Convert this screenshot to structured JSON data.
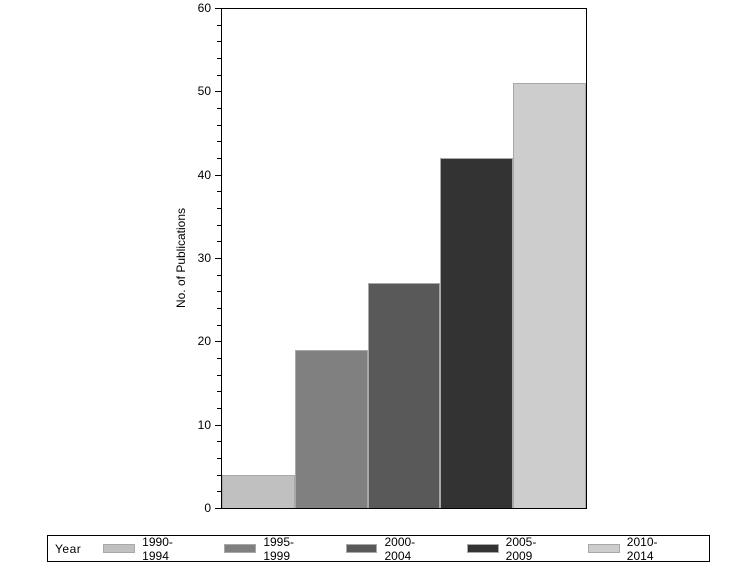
{
  "chart_data": {
    "type": "bar",
    "title": "",
    "xlabel": "",
    "ylabel": "No. of Publications",
    "ylim": [
      0,
      60
    ],
    "yticks": [
      0,
      10,
      20,
      30,
      40,
      50,
      60
    ],
    "grid": false,
    "legend_position": "bottom",
    "legend_title": "Year",
    "categories": [
      "1990-1994",
      "1995-1999",
      "2000-2004",
      "2005-2009",
      "2010-2014"
    ],
    "values": [
      4,
      19,
      27,
      42,
      51
    ],
    "colors": [
      "#c0c0c0",
      "#808080",
      "#595959",
      "#333333",
      "#cdcdcd"
    ]
  },
  "axis": {
    "ylabel": "No. of Publications",
    "ticks": [
      "0",
      "10",
      "20",
      "30",
      "40",
      "50",
      "60"
    ]
  },
  "legend": {
    "title": "Year",
    "items": [
      {
        "label": "1990-1994",
        "color": "#c0c0c0"
      },
      {
        "label": "1995-1999",
        "color": "#808080"
      },
      {
        "label": "2000-2004",
        "color": "#595959"
      },
      {
        "label": "2005-2009",
        "color": "#333333"
      },
      {
        "label": "2010-2014",
        "color": "#cdcdcd"
      }
    ]
  }
}
